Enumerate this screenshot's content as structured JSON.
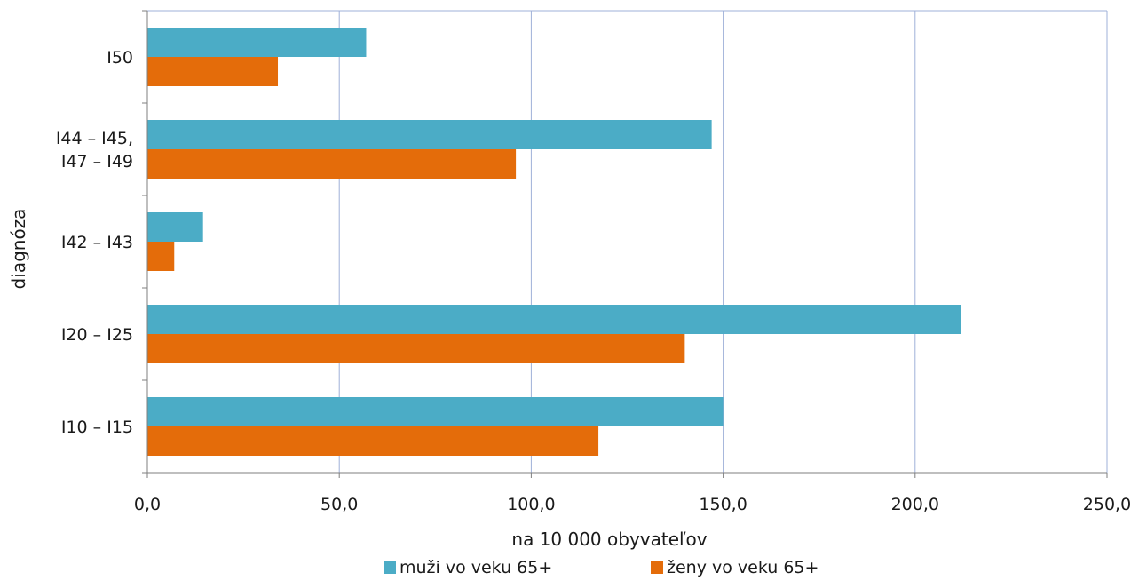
{
  "chart_data": {
    "type": "bar",
    "orientation": "horizontal",
    "categories": [
      "I50",
      "I44 – I45,\nI47 – I49",
      "I42 – I43",
      "I20 – I25",
      "I10 – I15"
    ],
    "series": [
      {
        "name": "muži vo veku 65+",
        "color": "#4BACC6",
        "values": [
          57.0,
          147.0,
          14.5,
          212.0,
          150.0
        ]
      },
      {
        "name": "ženy vo veku 65+",
        "color": "#E46C0A",
        "values": [
          34.0,
          96.0,
          7.0,
          140.0,
          117.5
        ]
      }
    ],
    "xlabel": "na 10 000 obyvateľov",
    "ylabel": "diagnóza",
    "xlim": [
      0,
      250
    ],
    "xticks": [
      "0,0",
      "50,0",
      "100,0",
      "150,0",
      "200,0",
      "250,0"
    ],
    "xtick_values": [
      0,
      50,
      100,
      150,
      200,
      250
    ],
    "grid": true,
    "legend_position": "bottom"
  }
}
